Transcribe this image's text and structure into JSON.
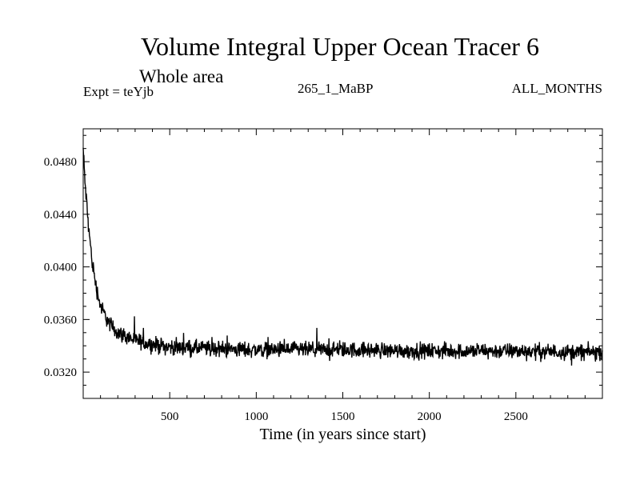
{
  "chart_data": {
    "type": "line",
    "title": "Volume Integral Upper Ocean Tracer 6",
    "subtitle": "Whole area",
    "experiment_label": "Expt = teYjb",
    "run_label": "265_1_MaBP",
    "period_label": "ALL_MONTHS",
    "xlabel": "Time (in years since start)",
    "ylabel": "",
    "xlim": [
      0,
      3000
    ],
    "ylim": [
      0.03,
      0.0505
    ],
    "x_ticks": [
      500,
      1000,
      1500,
      2000,
      2500
    ],
    "x_tick_labels": [
      "500",
      "1000",
      "1500",
      "2000",
      "2500"
    ],
    "y_ticks": [
      0.032,
      0.036,
      0.04,
      0.044,
      0.048
    ],
    "y_tick_labels": [
      "0.0320",
      "0.0360",
      "0.0400",
      "0.0440",
      "0.0480"
    ],
    "series": [
      {
        "name": "Tracer 6 volume integral",
        "x": [
          0,
          10,
          25,
          50,
          75,
          100,
          150,
          200,
          300,
          400,
          500,
          700,
          1000,
          1500,
          2000,
          2500,
          3000
        ],
        "values": [
          0.049,
          0.0465,
          0.044,
          0.0405,
          0.0385,
          0.037,
          0.0357,
          0.035,
          0.0344,
          0.0341,
          0.0339,
          0.0338,
          0.0337,
          0.0337,
          0.0336,
          0.0336,
          0.0335
        ],
        "noise_amplitude": 0.0006
      }
    ]
  }
}
